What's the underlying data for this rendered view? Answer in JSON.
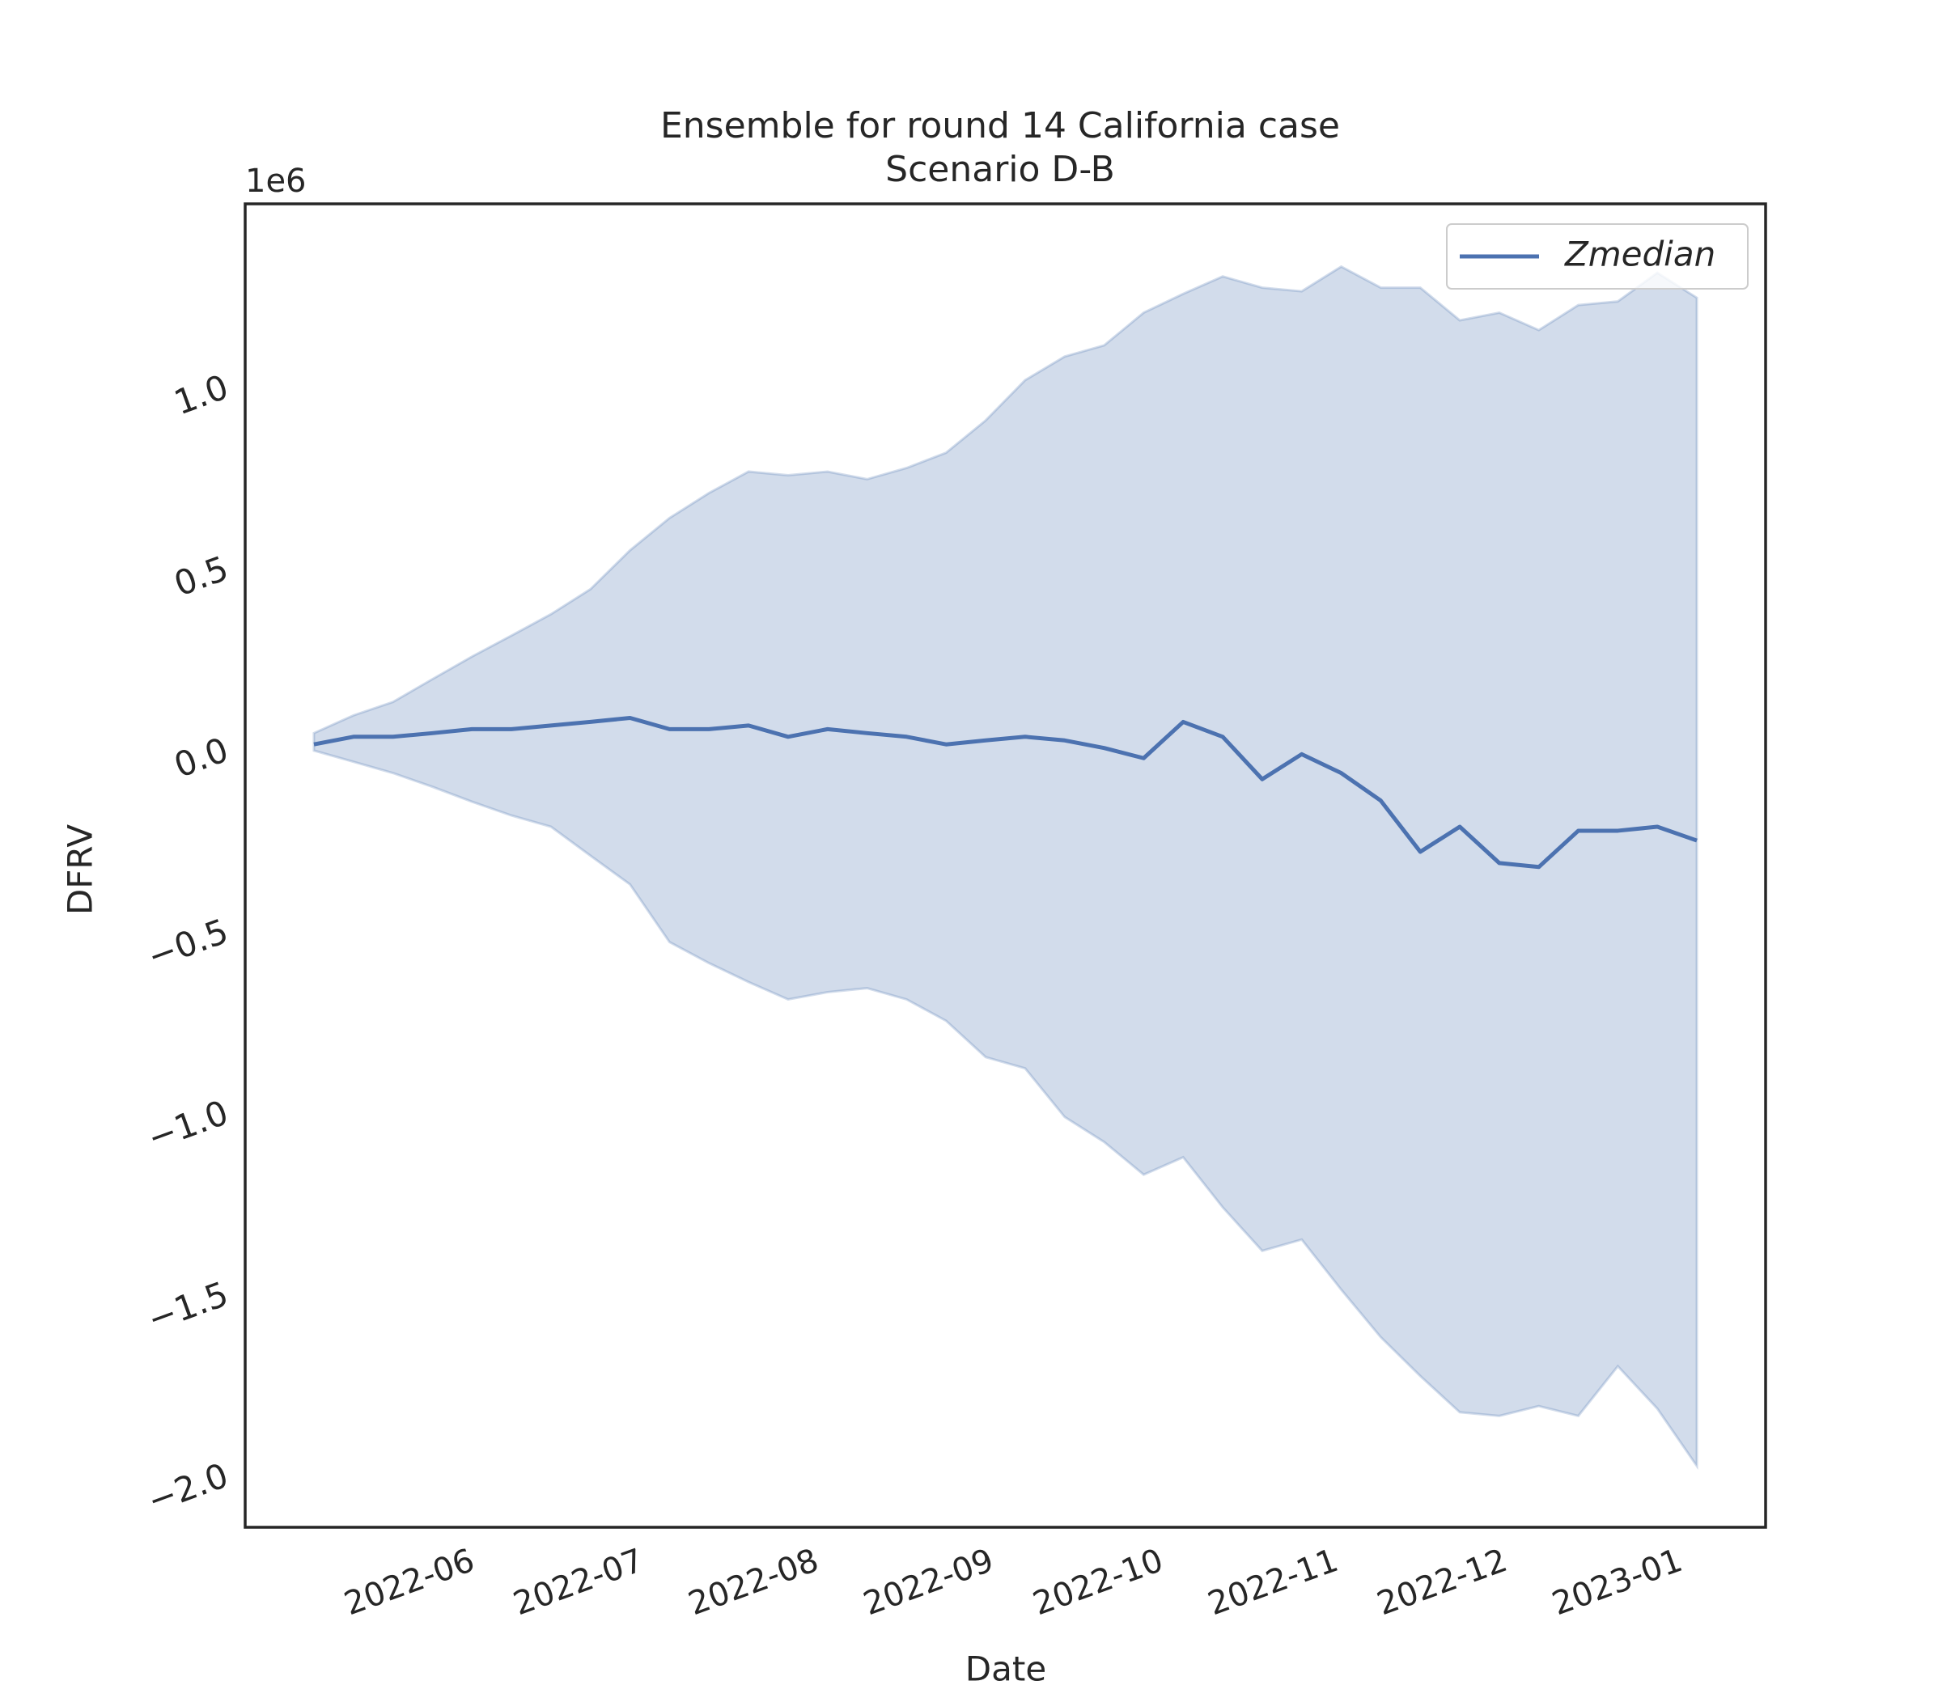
{
  "chart_data": {
    "type": "line",
    "title": "Ensemble for round 14 California case",
    "subtitle": "Scenario D-B",
    "offset_label": "1e6",
    "x_label": "Date",
    "y_label": "DFRV",
    "categories": [
      null,
      null,
      null,
      null,
      null,
      null,
      null,
      null,
      null,
      null,
      null,
      null,
      null,
      null,
      null,
      null,
      null,
      null,
      null,
      null,
      null,
      null,
      null,
      null,
      null,
      null,
      null,
      null,
      null,
      null,
      null,
      null,
      null,
      null,
      null,
      null
    ],
    "xlim": [
      -1.74,
      36.74
    ],
    "xticks": [
      {
        "value": 2.43,
        "label": "2022-06"
      },
      {
        "value": 6.71,
        "label": "2022-07"
      },
      {
        "value": 11.14,
        "label": "2022-08"
      },
      {
        "value": 15.57,
        "label": "2022-09"
      },
      {
        "value": 19.86,
        "label": "2022-10"
      },
      {
        "value": 24.29,
        "label": "2022-11"
      },
      {
        "value": 28.57,
        "label": "2022-12"
      },
      {
        "value": 33,
        "label": "2023-01"
      }
    ],
    "ylim": [
      -2.141,
      1.507
    ],
    "yticks": [
      {
        "value": -2,
        "label": "−2.0"
      },
      {
        "value": -1.5,
        "label": "−1.5"
      },
      {
        "value": -1,
        "label": "−1.0"
      },
      {
        "value": -0.5,
        "label": "−0.5"
      },
      {
        "value": 0,
        "label": "0.0"
      },
      {
        "value": 0.5,
        "label": "0.5"
      },
      {
        "value": 1,
        "label": "1.0"
      }
    ],
    "grid": false,
    "legend": "upper right",
    "series": [
      {
        "name": "Zmedian",
        "color": "#4c72b0",
        "values": [
          0.017,
          0.038,
          0.038,
          0.048,
          0.059,
          0.059,
          0.069,
          0.079,
          0.09,
          0.059,
          0.059,
          0.069,
          0.038,
          0.059,
          0.048,
          0.038,
          0.017,
          0.028,
          0.038,
          0.028,
          0.007,
          -0.021,
          0.079,
          0.038,
          -0.079,
          -0.01,
          -0.062,
          -0.138,
          -0.279,
          -0.21,
          -0.31,
          -0.321,
          -0.221,
          -0.221,
          -0.21,
          -0.248
        ]
      }
    ],
    "band": {
      "color": "#4c72b0",
      "upper": [
        0.048,
        0.097,
        0.134,
        0.197,
        0.259,
        0.317,
        0.376,
        0.445,
        0.552,
        0.641,
        0.71,
        0.769,
        0.759,
        0.769,
        0.748,
        0.779,
        0.821,
        0.91,
        1.021,
        1.086,
        1.117,
        1.207,
        1.259,
        1.307,
        1.276,
        1.266,
        1.334,
        1.276,
        1.276,
        1.186,
        1.207,
        1.159,
        1.228,
        1.238,
        1.317,
        1.248
      ],
      "lower": [
        0.0,
        -0.031,
        -0.062,
        -0.1,
        -0.141,
        -0.179,
        -0.21,
        -0.29,
        -0.369,
        -0.528,
        -0.586,
        -0.638,
        -0.686,
        -0.666,
        -0.655,
        -0.686,
        -0.745,
        -0.845,
        -0.876,
        -1.01,
        -1.079,
        -1.169,
        -1.121,
        -1.259,
        -1.379,
        -1.348,
        -1.486,
        -1.617,
        -1.724,
        -1.824,
        -1.834,
        -1.807,
        -1.834,
        -1.697,
        -1.814,
        -1.972
      ]
    }
  }
}
